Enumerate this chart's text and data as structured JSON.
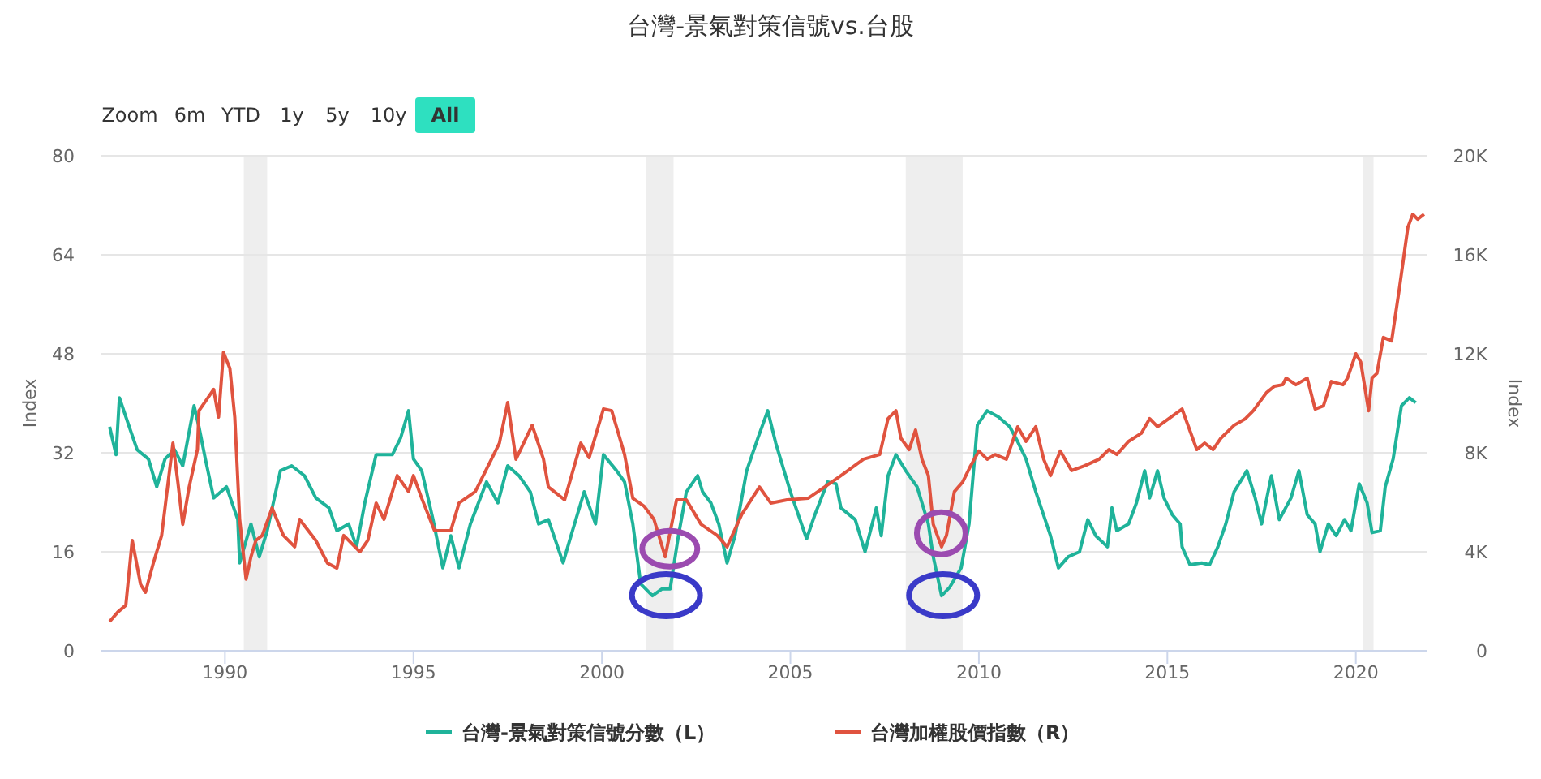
{
  "chart_data": {
    "type": "line",
    "title": "台灣-景氣對策信號vs.台股",
    "ylabel": "Index",
    "y2label": "Index",
    "annotations": [
      "Zoom",
      "6m",
      "YTD",
      "1y",
      "5y",
      "10y",
      "All"
    ],
    "xlim": [
      1986.7,
      2021.9
    ],
    "xticks": [
      1990,
      1995,
      2000,
      2005,
      2010,
      2015,
      2020
    ],
    "ylim": [
      0,
      80
    ],
    "yticks": [
      0,
      16,
      32,
      48,
      64,
      80
    ],
    "y2lim": [
      0,
      20000
    ],
    "y2ticks": [
      {
        "value": 0,
        "label": "0"
      },
      {
        "value": 4000,
        "label": "4K"
      },
      {
        "value": 8000,
        "label": "8K"
      },
      {
        "value": 12000,
        "label": "12K"
      },
      {
        "value": 16000,
        "label": "16K"
      },
      {
        "value": 20000,
        "label": "20K"
      }
    ],
    "grid": "y",
    "legend": "bottom",
    "marker": "none",
    "line_style": "solid",
    "bands": [
      {
        "axis": "x",
        "from": 1990.5,
        "to": 1991.12,
        "color": "#eeeeee"
      },
      {
        "axis": "x",
        "from": 2001.16,
        "to": 2001.9,
        "color": "#eeeeee"
      },
      {
        "axis": "x",
        "from": 2008.06,
        "to": 2009.57,
        "color": "#eeeeee"
      },
      {
        "axis": "x",
        "from": 2020.2,
        "to": 2020.47,
        "color": "#eeeeee"
      }
    ],
    "series": [
      {
        "name": "台灣-景氣對策信號分數（L）",
        "color": "#1fb39a",
        "x": [
          1986.94,
          1987.11,
          1987.2,
          1987.46,
          1987.67,
          1987.97,
          1988.19,
          1988.41,
          1988.66,
          1988.88,
          1989.18,
          1989.31,
          1989.48,
          1989.7,
          1990.04,
          1990.34,
          1990.39,
          1990.69,
          1990.91,
          1991.12,
          1991.47,
          1991.77,
          1992.11,
          1992.41,
          1992.76,
          1992.97,
          1993.28,
          1993.49,
          1993.71,
          1994.01,
          1994.44,
          1994.66,
          1994.87,
          1995.0,
          1995.22,
          1995.52,
          1995.78,
          1995.99,
          1996.21,
          1996.51,
          1996.94,
          1997.24,
          1997.5,
          1997.8,
          1998.1,
          1998.32,
          1998.58,
          1998.97,
          1999.18,
          1999.53,
          1999.83,
          2000.04,
          2000.39,
          2000.6,
          2000.82,
          2001.03,
          2001.34,
          2001.59,
          2001.81,
          2002.03,
          2002.24,
          2002.54,
          2002.67,
          2002.89,
          2003.1,
          2003.32,
          2003.53,
          2003.84,
          2004.14,
          2004.4,
          2004.61,
          2005.0,
          2005.43,
          2005.65,
          2005.99,
          2006.21,
          2006.34,
          2006.72,
          2006.98,
          2007.28,
          2007.41,
          2007.59,
          2007.8,
          2008.06,
          2008.36,
          2008.66,
          2008.79,
          2009.01,
          2009.22,
          2009.53,
          2009.74,
          2009.96,
          2010.22,
          2010.52,
          2010.82,
          2011.03,
          2011.25,
          2011.51,
          2011.9,
          2012.11,
          2012.37,
          2012.67,
          2012.89,
          2013.1,
          2013.41,
          2013.53,
          2013.66,
          2013.97,
          2014.18,
          2014.4,
          2014.53,
          2014.74,
          2014.91,
          2015.13,
          2015.34,
          2015.39,
          2015.6,
          2015.91,
          2016.12,
          2016.34,
          2016.55,
          2016.77,
          2017.11,
          2017.33,
          2017.5,
          2017.76,
          2017.97,
          2018.28,
          2018.49,
          2018.71,
          2018.92,
          2019.05,
          2019.27,
          2019.48,
          2019.7,
          2019.87,
          2020.09,
          2020.3,
          2020.43,
          2020.65,
          2020.78,
          2020.99,
          2021.21,
          2021.42,
          2021.59
        ],
        "values": [
          36.2,
          31.7,
          40.9,
          36.2,
          32.5,
          31.0,
          26.5,
          31.0,
          32.5,
          29.9,
          39.6,
          36.2,
          31.0,
          24.7,
          26.5,
          21.2,
          14.2,
          20.5,
          15.2,
          19.4,
          29.1,
          29.9,
          28.3,
          24.7,
          23.1,
          19.4,
          20.5,
          16.8,
          23.9,
          31.7,
          31.7,
          34.4,
          38.8,
          31.0,
          29.1,
          21.2,
          13.4,
          18.6,
          13.4,
          20.5,
          27.3,
          23.9,
          29.9,
          28.3,
          25.7,
          20.5,
          21.2,
          14.2,
          18.6,
          25.7,
          20.5,
          31.7,
          29.1,
          27.3,
          20.5,
          10.8,
          8.9,
          10.0,
          10.0,
          18.6,
          25.7,
          28.3,
          25.7,
          23.9,
          20.5,
          14.2,
          18.6,
          29.1,
          34.4,
          38.8,
          33.6,
          25.7,
          18.1,
          22.0,
          27.3,
          27.0,
          23.1,
          21.2,
          16.0,
          23.1,
          18.6,
          28.3,
          31.7,
          29.1,
          26.5,
          20.5,
          15.2,
          8.9,
          10.2,
          13.4,
          20.5,
          36.5,
          38.8,
          37.8,
          36.2,
          33.8,
          31.0,
          25.7,
          18.6,
          13.4,
          15.2,
          16.0,
          21.2,
          18.6,
          16.8,
          23.1,
          19.4,
          20.5,
          23.9,
          29.1,
          24.7,
          29.1,
          24.7,
          22.0,
          20.5,
          16.8,
          13.9,
          14.2,
          13.9,
          16.8,
          20.5,
          25.7,
          29.1,
          24.7,
          20.5,
          28.3,
          21.2,
          24.7,
          29.1,
          22.0,
          20.5,
          16.0,
          20.5,
          18.6,
          21.2,
          19.4,
          27.0,
          23.9,
          19.1,
          19.4,
          26.5,
          31.0,
          39.6,
          40.9,
          40.1
        ]
      },
      {
        "name": "台灣加權股價指數（R）",
        "color": "#e0533f",
        "axis": "y2",
        "x": [
          1986.94,
          1987.16,
          1987.37,
          1987.54,
          1987.76,
          1987.89,
          1988.1,
          1988.32,
          1988.53,
          1988.62,
          1988.75,
          1988.88,
          1989.05,
          1989.27,
          1989.31,
          1989.7,
          1989.83,
          1989.96,
          1990.13,
          1990.26,
          1990.39,
          1990.56,
          1990.69,
          1990.82,
          1990.99,
          1991.25,
          1991.55,
          1991.85,
          1991.98,
          1992.41,
          1992.72,
          1992.97,
          1993.15,
          1993.58,
          1993.79,
          1994.01,
          1994.22,
          1994.57,
          1994.87,
          1995.0,
          1995.22,
          1995.56,
          1995.99,
          1996.21,
          1996.64,
          1997.07,
          1997.28,
          1997.5,
          1997.72,
          1998.15,
          1998.45,
          1998.58,
          1999.01,
          1999.44,
          1999.66,
          2000.04,
          2000.26,
          2000.6,
          2000.82,
          2001.12,
          2001.38,
          2001.68,
          2001.98,
          2002.24,
          2002.63,
          2003.06,
          2003.32,
          2003.71,
          2004.18,
          2004.48,
          2004.91,
          2005.47,
          2005.91,
          2006.34,
          2006.94,
          2007.37,
          2007.59,
          2007.8,
          2007.93,
          2008.15,
          2008.32,
          2008.49,
          2008.66,
          2008.79,
          2009.01,
          2009.14,
          2009.35,
          2009.57,
          2009.78,
          2010.0,
          2010.22,
          2010.43,
          2010.73,
          2011.03,
          2011.25,
          2011.51,
          2011.72,
          2011.9,
          2012.16,
          2012.46,
          2012.8,
          2013.19,
          2013.45,
          2013.66,
          2013.97,
          2014.31,
          2014.53,
          2014.74,
          2015.04,
          2015.39,
          2015.78,
          2015.99,
          2016.21,
          2016.42,
          2016.77,
          2017.07,
          2017.28,
          2017.63,
          2017.84,
          2018.06,
          2018.15,
          2018.41,
          2018.71,
          2018.92,
          2019.14,
          2019.35,
          2019.66,
          2019.78,
          2020.0,
          2020.13,
          2020.34,
          2020.43,
          2020.56,
          2020.73,
          2020.95,
          2021.16,
          2021.38,
          2021.51,
          2021.64,
          2021.81
        ],
        "values": [
          1180,
          1570,
          1840,
          4460,
          2690,
          2360,
          3540,
          4660,
          7280,
          8390,
          6820,
          5110,
          6620,
          8130,
          9700,
          10560,
          9440,
          12060,
          11410,
          9440,
          5310,
          2890,
          3800,
          4460,
          4660,
          5770,
          4660,
          4200,
          5310,
          4460,
          3540,
          3340,
          4660,
          4000,
          4460,
          5970,
          5310,
          7080,
          6430,
          7080,
          6160,
          4850,
          4850,
          5970,
          6430,
          7740,
          8390,
          10030,
          7740,
          9110,
          7740,
          6620,
          6100,
          8390,
          7800,
          9770,
          9700,
          7930,
          6160,
          5840,
          5310,
          3800,
          6100,
          6100,
          5110,
          4660,
          4200,
          5510,
          6620,
          5970,
          6100,
          6160,
          6620,
          7080,
          7740,
          7930,
          9380,
          9700,
          8590,
          8130,
          8920,
          7740,
          7080,
          5110,
          4200,
          4660,
          6430,
          6820,
          7470,
          8070,
          7740,
          7930,
          7740,
          9050,
          8460,
          9050,
          7740,
          7080,
          8070,
          7280,
          7470,
          7740,
          8130,
          7930,
          8460,
          8790,
          9380,
          9050,
          9380,
          9770,
          8130,
          8390,
          8130,
          8590,
          9110,
          9380,
          9700,
          10430,
          10690,
          10750,
          11020,
          10750,
          11020,
          9770,
          9900,
          10880,
          10750,
          11020,
          12000,
          11670,
          9700,
          11020,
          11210,
          12660,
          12520,
          14690,
          17110,
          17640,
          17440,
          17640
        ]
      }
    ]
  }
}
